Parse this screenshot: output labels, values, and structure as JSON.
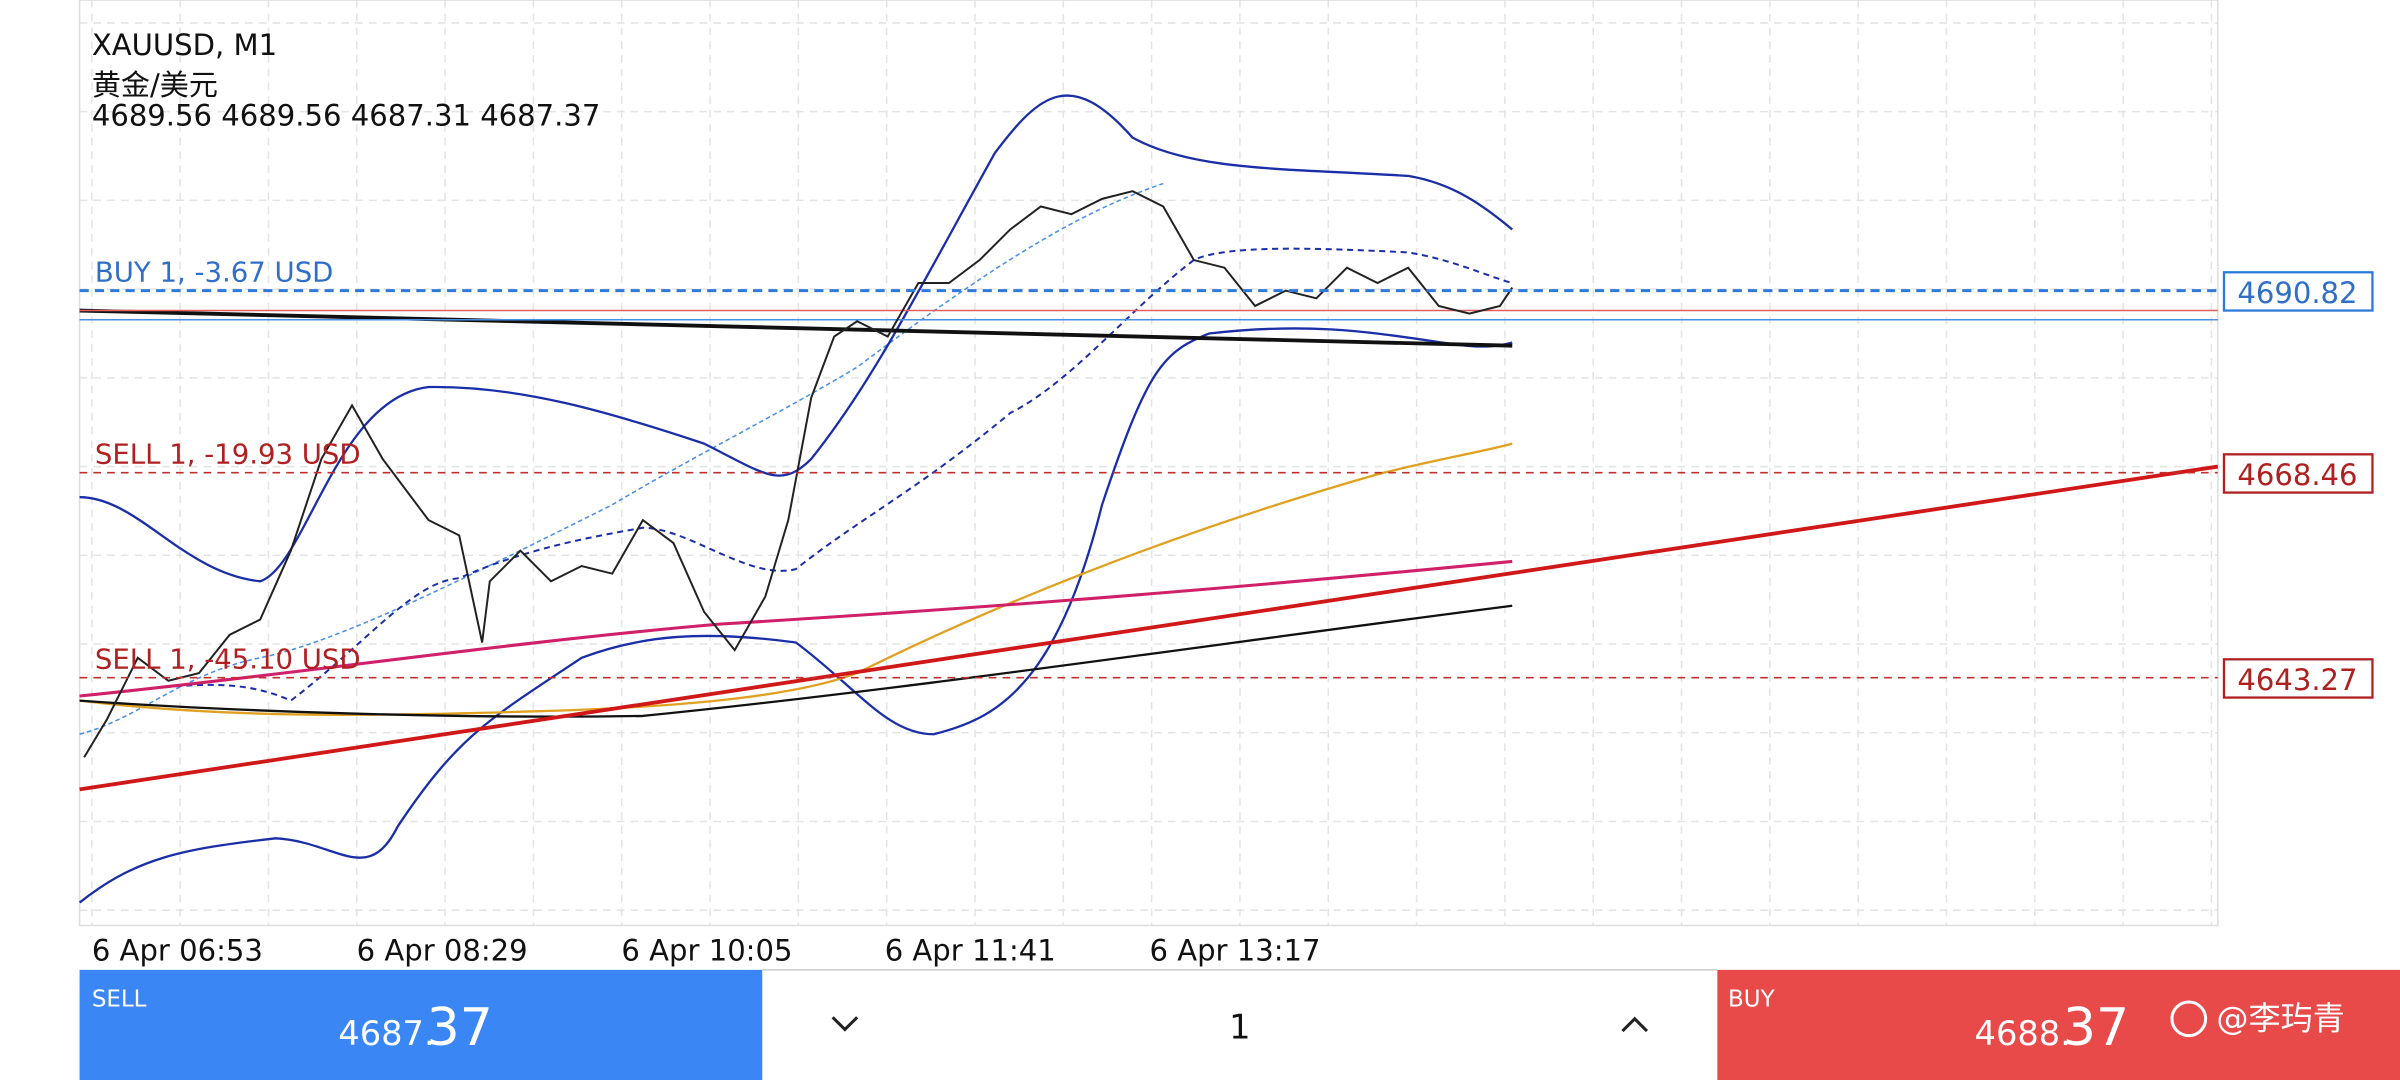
{
  "header": {
    "symbol": "XAUUSD, M1",
    "name": "黄金/美元",
    "ohlc": "4689.56 4689.56 4687.31 4687.37"
  },
  "orders": [
    {
      "label": "BUY 1,  -3.67 USD",
      "price": "4690.82"
    },
    {
      "label": "SELL 1,  -19.93 USD",
      "price": "4668.46"
    },
    {
      "label": "SELL 1,  -45.10 USD",
      "price": "4643.27"
    }
  ],
  "time_axis": [
    "6 Apr 06:53",
    "6 Apr 08:29",
    "6 Apr 10:05",
    "6 Apr 11:41",
    "6 Apr 13:17"
  ],
  "trade_bar": {
    "sell": {
      "label": "SELL",
      "price_small": "4687.",
      "price_big": "37"
    },
    "volume": "1",
    "buy": {
      "label": "BUY",
      "price_small": "4688.",
      "price_big": "37"
    }
  },
  "watermark": "@李玙青"
}
